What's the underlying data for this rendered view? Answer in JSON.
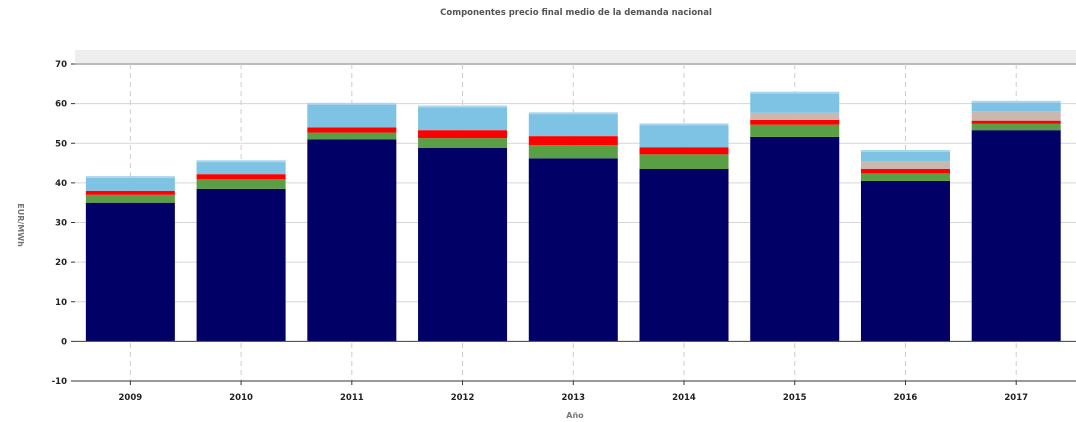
{
  "chart_data": {
    "type": "bar",
    "stacked": true,
    "title": "Componentes precio final medio de la demanda nacional",
    "xlabel": "Año",
    "ylabel": "EUR/MWh",
    "ylim": [
      -10,
      70
    ],
    "yticks": [
      -10,
      0,
      10,
      20,
      30,
      40,
      50,
      60,
      70
    ],
    "grid": true,
    "legend": "none",
    "categories": [
      "2009",
      "2010",
      "2011",
      "2012",
      "2013",
      "2014",
      "2015",
      "2016",
      "2017"
    ],
    "series": [
      {
        "color": "#000066",
        "values": [
          35.0,
          38.5,
          51.0,
          48.8,
          46.2,
          43.5,
          51.6,
          40.5,
          53.3
        ]
      },
      {
        "color": "#5a9e46",
        "values": [
          2.0,
          2.4,
          1.7,
          2.5,
          3.3,
          3.7,
          3.1,
          1.9,
          1.6
        ]
      },
      {
        "color": "#ff0000",
        "values": [
          1.0,
          1.3,
          1.3,
          2.0,
          2.3,
          1.8,
          1.2,
          1.1,
          0.8
        ]
      },
      {
        "color": "#c8b8b0",
        "values": [
          0.0,
          0.0,
          0.0,
          0.0,
          0.0,
          0.0,
          1.8,
          2.0,
          2.4
        ]
      },
      {
        "color": "#7ec2e4",
        "values": [
          3.7,
          3.5,
          6.2,
          6.2,
          6.0,
          6.0,
          5.3,
          2.8,
          2.6
        ]
      }
    ]
  }
}
